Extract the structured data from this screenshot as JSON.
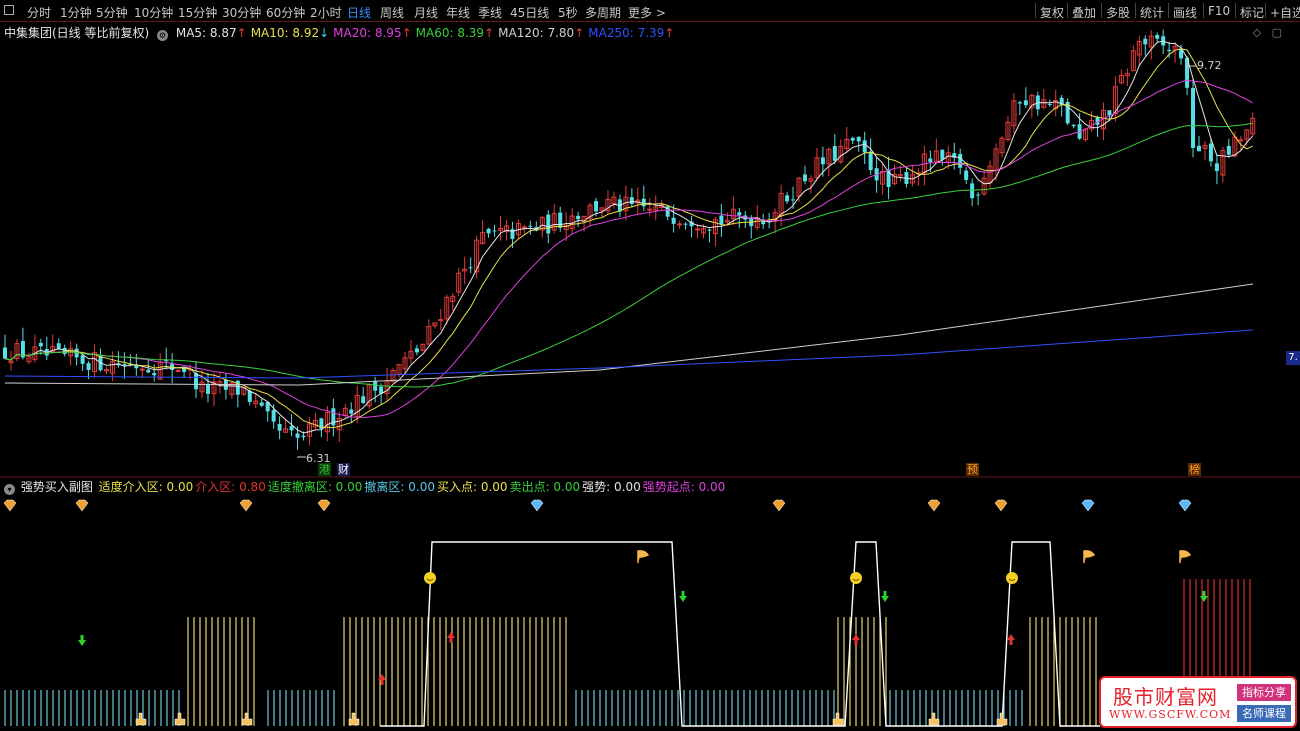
{
  "toolbar": {
    "periods": [
      "分时",
      "1分钟",
      "5分钟",
      "10分钟",
      "15分钟",
      "30分钟",
      "60分钟",
      "2小时",
      "日线",
      "周线",
      "月线",
      "年线",
      "季线",
      "45日线",
      "5秒",
      "多周期",
      "更多 >"
    ],
    "selected": "日线",
    "right_buttons": [
      "复权",
      "叠加",
      "多股",
      "统计",
      "画线",
      "F10",
      "标记",
      "+自选"
    ]
  },
  "main_header": {
    "title": "中集集团(日线 等比前复权)",
    "ma": [
      {
        "label": "MA5: 8.87",
        "arrow": "↑",
        "color": "#e6e6e6"
      },
      {
        "label": "MA10: 8.92",
        "arrow": "↓",
        "color": "#e8e04a"
      },
      {
        "label": "MA20: 8.95",
        "arrow": "↑",
        "color": "#e040e0"
      },
      {
        "label": "MA60: 8.39",
        "arrow": "↑",
        "color": "#3ad03a"
      },
      {
        "label": "MA120: 7.80",
        "arrow": "↑",
        "color": "#d0d0d0"
      },
      {
        "label": "MA250: 7.39",
        "arrow": "↑",
        "color": "#3050ff"
      }
    ],
    "high_label": "9.72",
    "low_label": "6.31",
    "axis_tag": "7."
  },
  "events": [
    {
      "text": "港",
      "color": "#30c030",
      "bg": "#0a3a0a"
    },
    {
      "text": "财",
      "color": "#ffffff",
      "bg": "#1a1a50"
    },
    {
      "text": "预",
      "color": "#ffa030",
      "bg": "#5a2a00"
    },
    {
      "text": "榜",
      "color": "#ffa030",
      "bg": "#5a2a00"
    }
  ],
  "sub_header": {
    "title": "强势买入副图",
    "items": [
      {
        "label": "适度介入区: 0.00",
        "color": "#e8e04a"
      },
      {
        "label": "介入区: 0.80",
        "color": "#e33030"
      },
      {
        "label": "适度撤离区: 0.00",
        "color": "#3ad03a"
      },
      {
        "label": "撤离区: 0.00",
        "color": "#5ac8e6"
      },
      {
        "label": "买入点: 0.00",
        "color": "#e8e04a"
      },
      {
        "label": "卖出点: 0.00",
        "color": "#3ad03a"
      },
      {
        "label": "强势: 0.00",
        "color": "#e6e6e6"
      },
      {
        "label": "强势起点: 0.00",
        "color": "#e040e0"
      }
    ]
  },
  "colors": {
    "up": "#e33b3b",
    "down": "#54e0e6",
    "zone_yellow": "#e8d46a",
    "zone_cyan": "#6ec8dc",
    "zone_red": "#d03030",
    "strength": "#ffffff"
  },
  "watermark": {
    "name": "股市财富网",
    "url": "WWW.GSCFW.COM",
    "tag1": "指标分享",
    "tag2": "名师课程"
  }
}
